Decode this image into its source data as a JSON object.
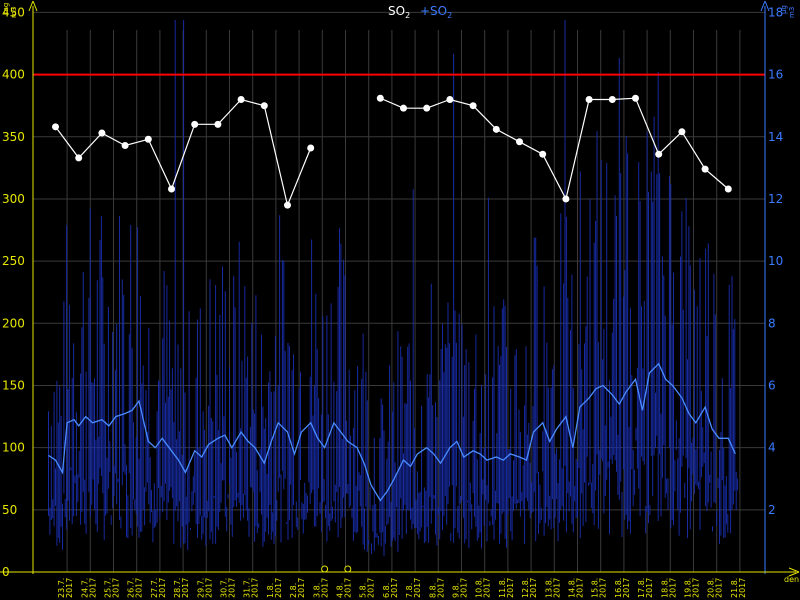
{
  "chart_data": {
    "type": "line",
    "title_primary": "SO",
    "title_primary_sub": "2",
    "title_secondary": "+SO",
    "title_secondary_sub": "2",
    "y_left": {
      "unit_num": "mg",
      "unit_den": "m3",
      "min": 0,
      "max": 460,
      "ticks": [
        "0",
        "50",
        "100",
        "150",
        "200",
        "250",
        "300",
        "350",
        "400",
        "450"
      ],
      "color": "#e6e600"
    },
    "y_right": {
      "unit_num": "μg",
      "unit_den": "m3",
      "min": 0,
      "max": 18.4,
      "ticks": [
        "2",
        "4",
        "6",
        "8",
        "10",
        "12",
        "14",
        "16",
        "18"
      ],
      "color": "#3a7bff"
    },
    "x_label": "den",
    "x_ticks": [
      "23.7.",
      "24.7.",
      "25.7.",
      "26.7.",
      "27.7.",
      "28.7.",
      "29.7.",
      "30.7.",
      "31.7.",
      "1.8.",
      "2.8.",
      "3.8.",
      "4.8.",
      "5.8.",
      "6.8.",
      "7.8.",
      "8.8.",
      "9.8.",
      "10.8.",
      "11.8.",
      "12.8.",
      "13.8.",
      "14.8.",
      "15.8.",
      "16.8.",
      "17.8.",
      "18.8.",
      "19.8.",
      "20.8.",
      "21.8."
    ],
    "x_year": "2017",
    "limit_line": {
      "value": 400,
      "color": "#ff0000"
    },
    "missing_markers": [
      11.6,
      12.6
    ],
    "series": [
      {
        "axis": "left",
        "color": "#ffffff",
        "style": "line-with-points",
        "segments": [
          [
            [
              0,
              358
            ],
            [
              1,
              333
            ],
            [
              2,
              353
            ],
            [
              3,
              343
            ],
            [
              4,
              348
            ],
            [
              5,
              308
            ],
            [
              6,
              360
            ],
            [
              7,
              360
            ],
            [
              8,
              380
            ],
            [
              9,
              375
            ],
            [
              10,
              295
            ],
            [
              11,
              341
            ]
          ],
          [
            [
              14,
              381
            ],
            [
              15,
              373
            ],
            [
              16,
              373
            ],
            [
              17,
              380
            ],
            [
              18,
              375
            ],
            [
              19,
              356
            ],
            [
              20,
              346
            ],
            [
              21,
              336
            ],
            [
              22,
              300
            ],
            [
              23,
              380
            ],
            [
              24,
              380
            ],
            [
              25,
              381
            ],
            [
              26,
              336
            ],
            [
              27,
              354
            ],
            [
              28,
              324
            ],
            [
              29,
              308
            ]
          ]
        ]
      },
      {
        "axis": "right",
        "color": "#4a8cff",
        "style": "smooth-line",
        "points": [
          [
            -0.3,
            3.75
          ],
          [
            0,
            3.6
          ],
          [
            0.3,
            3.2
          ],
          [
            0.5,
            4.8
          ],
          [
            0.8,
            4.9
          ],
          [
            1,
            4.7
          ],
          [
            1.3,
            5.0
          ],
          [
            1.6,
            4.8
          ],
          [
            2,
            4.9
          ],
          [
            2.3,
            4.7
          ],
          [
            2.6,
            5.0
          ],
          [
            3,
            5.1
          ],
          [
            3.3,
            5.2
          ],
          [
            3.6,
            5.5
          ],
          [
            4,
            4.2
          ],
          [
            4.3,
            4.0
          ],
          [
            4.6,
            4.3
          ],
          [
            5,
            3.9
          ],
          [
            5.3,
            3.6
          ],
          [
            5.6,
            3.2
          ],
          [
            6,
            3.9
          ],
          [
            6.3,
            3.7
          ],
          [
            6.6,
            4.1
          ],
          [
            7,
            4.3
          ],
          [
            7.3,
            4.4
          ],
          [
            7.6,
            4.0
          ],
          [
            8,
            4.5
          ],
          [
            8.3,
            4.2
          ],
          [
            8.6,
            4.0
          ],
          [
            9,
            3.5
          ],
          [
            9.3,
            4.2
          ],
          [
            9.6,
            4.8
          ],
          [
            10,
            4.5
          ],
          [
            10.3,
            3.8
          ],
          [
            10.6,
            4.5
          ],
          [
            11,
            4.8
          ],
          [
            11.3,
            4.3
          ],
          [
            11.6,
            4.0
          ],
          [
            12,
            4.8
          ],
          [
            12.3,
            4.5
          ],
          [
            12.6,
            4.2
          ],
          [
            13,
            4.0
          ],
          [
            13.3,
            3.5
          ],
          [
            13.6,
            2.8
          ],
          [
            14,
            2.3
          ],
          [
            14.3,
            2.6
          ],
          [
            14.6,
            3.0
          ],
          [
            15,
            3.6
          ],
          [
            15.3,
            3.4
          ],
          [
            15.6,
            3.8
          ],
          [
            16,
            4.0
          ],
          [
            16.3,
            3.8
          ],
          [
            16.6,
            3.5
          ],
          [
            17,
            4.0
          ],
          [
            17.3,
            4.2
          ],
          [
            17.6,
            3.7
          ],
          [
            18,
            3.9
          ],
          [
            18.3,
            3.8
          ],
          [
            18.6,
            3.6
          ],
          [
            19,
            3.7
          ],
          [
            19.3,
            3.6
          ],
          [
            19.6,
            3.8
          ],
          [
            20,
            3.7
          ],
          [
            20.3,
            3.6
          ],
          [
            20.6,
            4.5
          ],
          [
            21,
            4.8
          ],
          [
            21.3,
            4.2
          ],
          [
            21.6,
            4.6
          ],
          [
            22,
            5.0
          ],
          [
            22.3,
            4.0
          ],
          [
            22.6,
            5.3
          ],
          [
            23,
            5.6
          ],
          [
            23.3,
            5.9
          ],
          [
            23.6,
            6.0
          ],
          [
            24,
            5.7
          ],
          [
            24.3,
            5.4
          ],
          [
            24.6,
            5.8
          ],
          [
            25,
            6.2
          ],
          [
            25.3,
            5.2
          ],
          [
            25.6,
            6.4
          ],
          [
            26,
            6.7
          ],
          [
            26.3,
            6.2
          ],
          [
            26.6,
            6.0
          ],
          [
            27,
            5.6
          ],
          [
            27.3,
            5.1
          ],
          [
            27.6,
            4.8
          ],
          [
            28,
            5.3
          ],
          [
            28.3,
            4.6
          ],
          [
            28.6,
            4.3
          ],
          [
            29,
            4.3
          ],
          [
            29.3,
            3.8
          ]
        ]
      }
    ]
  }
}
